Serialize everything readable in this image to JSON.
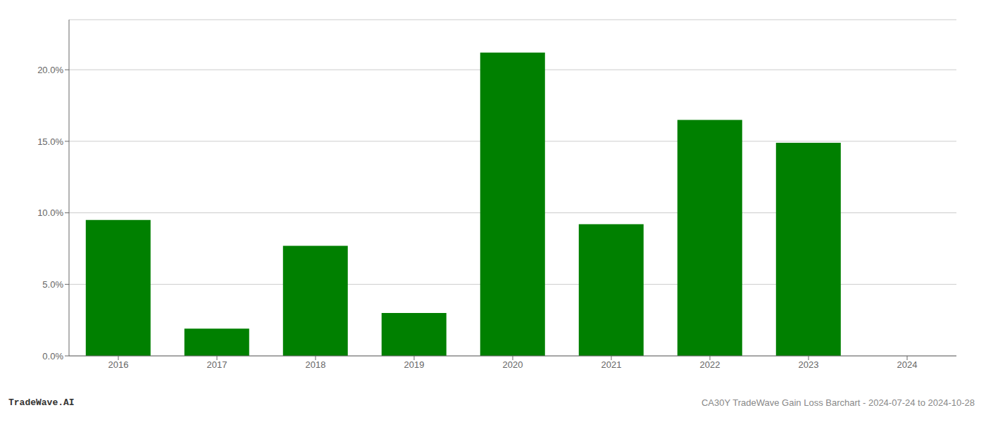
{
  "chart_data": {
    "type": "bar",
    "categories": [
      "2016",
      "2017",
      "2018",
      "2019",
      "2020",
      "2021",
      "2022",
      "2023",
      "2024"
    ],
    "values": [
      0.095,
      0.019,
      0.077,
      0.03,
      0.212,
      0.092,
      0.165,
      0.149,
      null
    ],
    "color": "#008000",
    "ylim": [
      0,
      0.235
    ],
    "yticks": [
      {
        "value": 0.0,
        "label": "0.0%"
      },
      {
        "value": 0.05,
        "label": "5.0%"
      },
      {
        "value": 0.1,
        "label": "10.0%"
      },
      {
        "value": 0.15,
        "label": "15.0%"
      },
      {
        "value": 0.2,
        "label": "20.0%"
      }
    ],
    "grid": true,
    "annotations": [
      "TradeWave.AI",
      "CA30Y TradeWave Gain Loss Barchart - 2024-07-24 to 2024-10-28"
    ]
  }
}
